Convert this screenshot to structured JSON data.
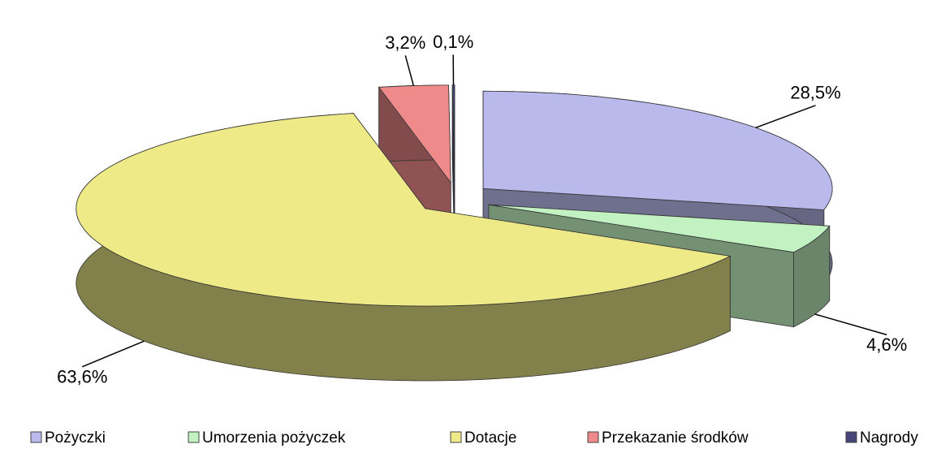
{
  "chart_data": {
    "type": "pie3d",
    "categories": [
      "Pożyczki",
      "Umorzenia pożyczek",
      "Dotacje",
      "Przekazanie środków",
      "Nagrody"
    ],
    "values": [
      28.5,
      4.6,
      63.6,
      3.2,
      0.1
    ],
    "value_labels": [
      "28,5%",
      "4,6%",
      "63,6%",
      "3,2%",
      "0,1%"
    ],
    "colors": [
      "#b9b9ec",
      "#c2f2c2",
      "#eeea88",
      "#ee8a8a",
      "#454578"
    ],
    "legend": "bottom"
  }
}
